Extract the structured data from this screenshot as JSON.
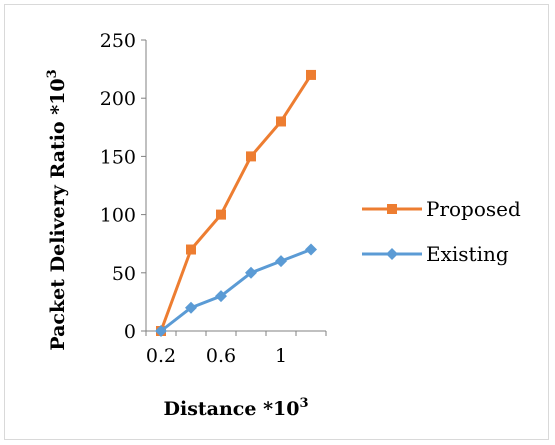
{
  "chart_data": {
    "type": "line",
    "title": "",
    "xlabel": "Distance *10",
    "xlabel_sup": "3",
    "ylabel": "Packet Delivery Ratio *10",
    "ylabel_sup": "3",
    "ylim": [
      0,
      250
    ],
    "xlim": [
      0.2,
      1.2
    ],
    "yticks": [
      "0",
      "50",
      "100",
      "150",
      "200",
      "250"
    ],
    "xticks": [
      {
        "value": 0.2,
        "label": "0.2"
      },
      {
        "value": 0.6,
        "label": "0.6"
      },
      {
        "value": 1.0,
        "label": "1"
      }
    ],
    "x": [
      0.2,
      0.4,
      0.6,
      0.8,
      1.0,
      1.2
    ],
    "series": [
      {
        "name": "Proposed",
        "color": "#ED7D31",
        "marker": "square",
        "values": [
          0,
          70,
          100,
          150,
          180,
          220
        ]
      },
      {
        "name": "Existing",
        "color": "#5B9BD5",
        "marker": "diamond",
        "values": [
          0,
          20,
          30,
          50,
          60,
          70
        ]
      }
    ],
    "grid": false,
    "legend": "right"
  }
}
